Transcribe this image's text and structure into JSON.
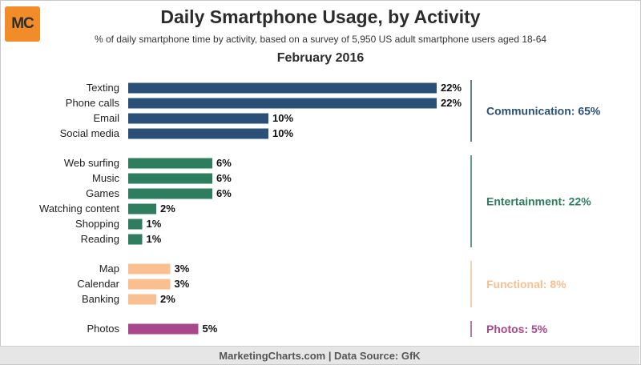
{
  "header": {
    "logo_text": "MC",
    "title": "Daily Smartphone Usage, by Activity",
    "subtitle": "% of daily smartphone time by activity, based on a survey of 5,950 US adult smartphone users aged 18-64",
    "date": "February 2016"
  },
  "footer": {
    "source": "MarketingCharts.com | Data Source: GfK"
  },
  "colors": {
    "communication": "#2b5078",
    "entertainment": "#2e7d5e",
    "functional": "#f9bf91",
    "photos": "#a8488a",
    "logo": "#f28c28"
  },
  "chart_data": {
    "type": "bar",
    "orientation": "horizontal",
    "title": "Daily Smartphone Usage, by Activity",
    "subtitle": "% of daily smartphone time by activity, based on a survey of 5,950 US adult smartphone users aged 18-64",
    "unit": "%",
    "categories": [
      "Texting",
      "Phone calls",
      "Email",
      "Social media",
      "Web surfing",
      "Music",
      "Games",
      "Watching content",
      "Shopping",
      "Reading",
      "Map",
      "Calendar",
      "Banking",
      "Photos"
    ],
    "values": [
      22,
      22,
      10,
      10,
      6,
      6,
      6,
      2,
      1,
      1,
      3,
      3,
      2,
      5
    ],
    "value_labels": [
      "22%",
      "22%",
      "10%",
      "10%",
      "6%",
      "6%",
      "6%",
      "2%",
      "1%",
      "1%",
      "3%",
      "3%",
      "2%",
      "5%"
    ],
    "groups": [
      {
        "key": "communication",
        "label": "Communication: 65%",
        "value": 65,
        "start": 0,
        "end": 3,
        "color": "#2b5078"
      },
      {
        "key": "entertainment",
        "label": "Entertainment: 22%",
        "value": 22,
        "start": 4,
        "end": 9,
        "color": "#2e7d5e"
      },
      {
        "key": "functional",
        "label": "Functional: 8%",
        "value": 8,
        "start": 10,
        "end": 12,
        "color": "#f9bf91"
      },
      {
        "key": "photos",
        "label": "Photos: 5%",
        "value": 5,
        "start": 13,
        "end": 13,
        "color": "#a8488a"
      }
    ],
    "xlim": [
      0,
      22
    ],
    "grid": false,
    "legend": "none"
  }
}
